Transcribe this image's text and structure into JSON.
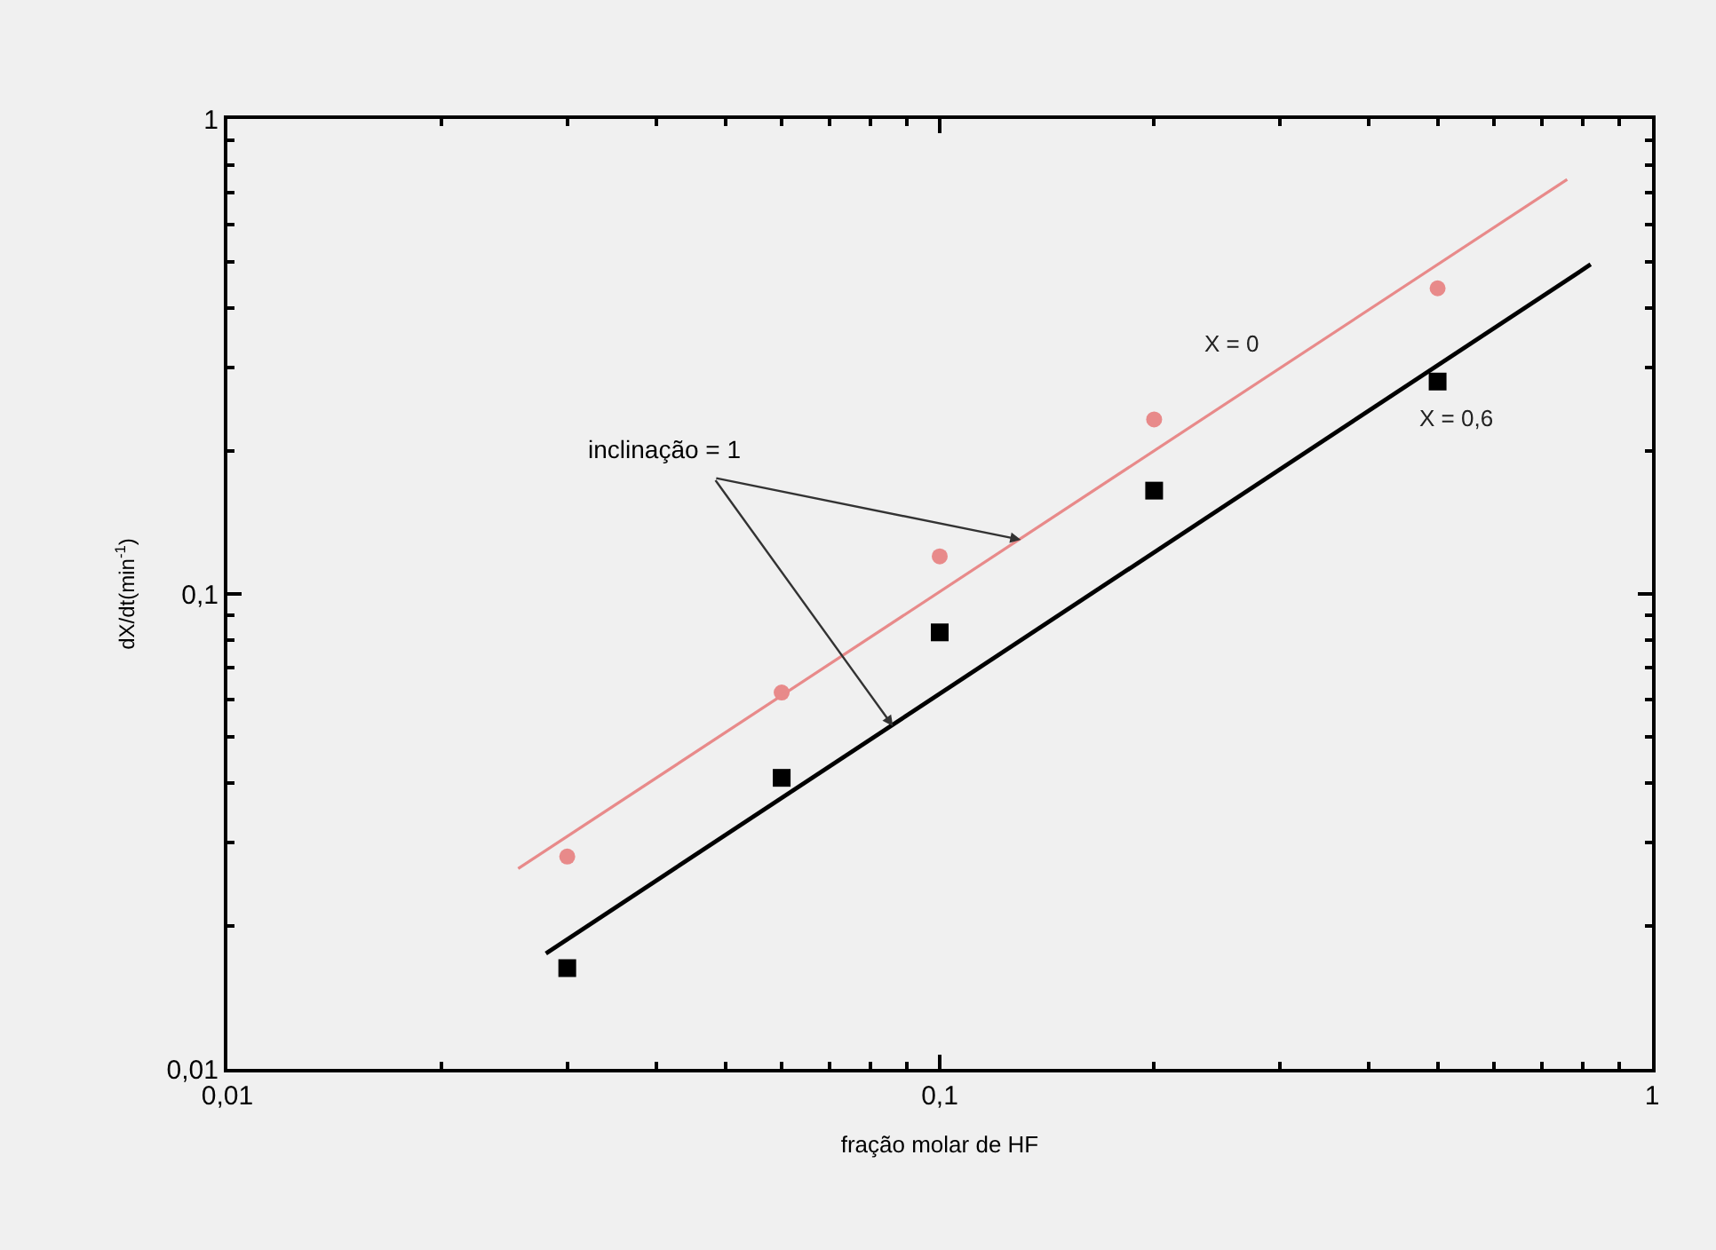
{
  "chart_data": {
    "type": "scatter",
    "xlabel": "fração molar de HF",
    "ylabel": "dX/dt(min$^{-1}$)",
    "log": "xy",
    "grid": false,
    "legend": false,
    "xlim": [
      0.01,
      1
    ],
    "ylim": [
      0.01,
      1
    ],
    "xticks": [
      {
        "value": 0.01,
        "label": "0,01"
      },
      {
        "value": 0.1,
        "label": "0,1"
      },
      {
        "value": 1,
        "label": "1"
      }
    ],
    "yticks": [
      {
        "value": 0.01,
        "label": "0,01"
      },
      {
        "value": 0.1,
        "label": "0,1"
      },
      {
        "value": 1,
        "label": "1"
      }
    ],
    "series": [
      {
        "marker": "circle",
        "color": "#e88a8a",
        "x": [
          0.03,
          0.06,
          0.1,
          0.2,
          0.5
        ],
        "values": [
          0.028,
          0.062,
          0.12,
          0.233,
          0.44
        ]
      },
      {
        "marker": "square",
        "color": "#000000",
        "x": [
          0.03,
          0.06,
          0.1,
          0.2,
          0.5
        ],
        "values": [
          0.0163,
          0.041,
          0.083,
          0.165,
          0.28
        ]
      },
      {
        "type": "line",
        "name": "X = 0",
        "marker": "none",
        "line_style": "solid",
        "color": "#e88a8a",
        "x": [
          0.0256,
          0.76
        ],
        "values": [
          0.0264,
          0.746
        ]
      },
      {
        "type": "line",
        "name": "X = 0,6",
        "marker": "none",
        "line_style": "solid",
        "color": "#000000",
        "x": [
          0.028,
          0.82
        ],
        "values": [
          0.0175,
          0.494
        ]
      }
    ],
    "annotations": [
      {
        "text": "inclinação = 1",
        "x": 0.13,
        "y": 0.13
      }
    ]
  }
}
